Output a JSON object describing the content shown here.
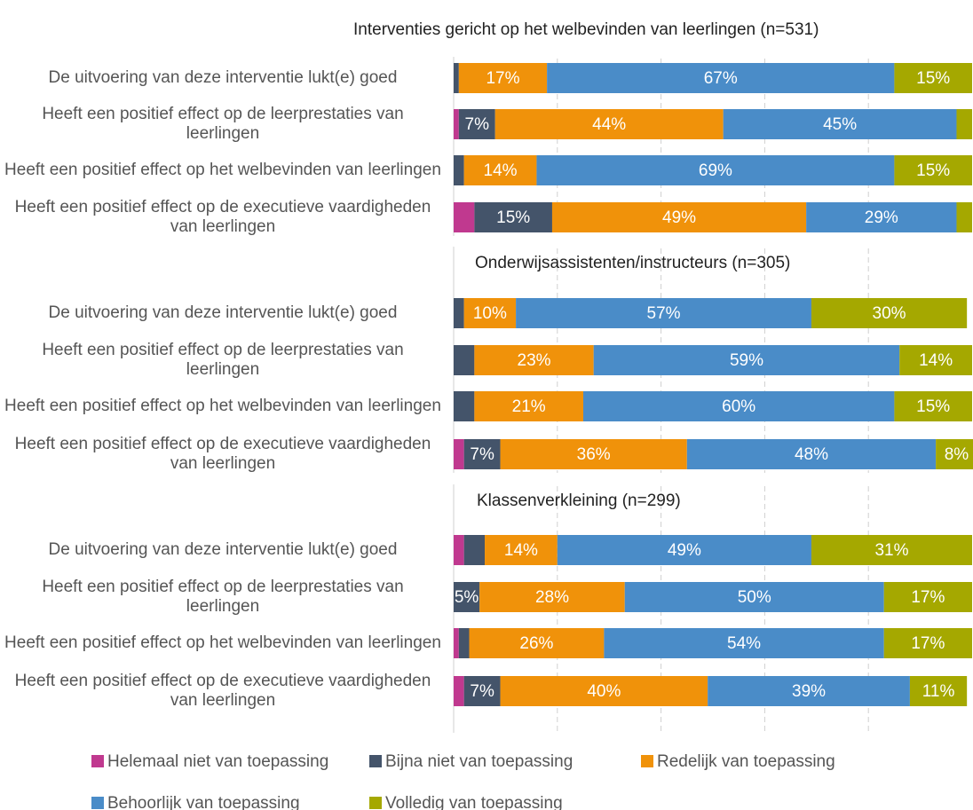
{
  "chart_data": [
    {
      "type": "stacked-bar-horizontal",
      "title": "Interventies gericht op het welbevinden van leerlingen (n=531)",
      "categories": [
        "De uitvoering van deze interventie lukt(e) goed",
        "Heeft een positief effect op de leerprestaties van leerlingen",
        "Heeft een positief effect op het welbevinden van leerlingen",
        "Heeft een positief effect op de executieve vaardigheden van leerlingen"
      ],
      "xlim": [
        0,
        100
      ],
      "xticks": [
        20,
        40,
        60,
        80
      ],
      "grid": true,
      "series": [
        {
          "name": "Helemaal niet van toepassing",
          "color": "#c0398f",
          "values": [
            0,
            1,
            0,
            4
          ],
          "value_labels": [
            null,
            null,
            null,
            null
          ]
        },
        {
          "name": "Bijna niet van toepassing",
          "color": "#44546a",
          "values": [
            1,
            7,
            2,
            15
          ],
          "value_labels": [
            null,
            "7%",
            null,
            "15%"
          ]
        },
        {
          "name": "Redelijk van toepassing",
          "color": "#f0920a",
          "values": [
            17,
            44,
            14,
            49
          ],
          "value_labels": [
            "17%",
            "44%",
            "14%",
            "49%"
          ]
        },
        {
          "name": "Behoorlijk van toepassing",
          "color": "#4a8cc8",
          "values": [
            67,
            45,
            69,
            29
          ],
          "value_labels": [
            "67%",
            "45%",
            "69%",
            "29%"
          ]
        },
        {
          "name": "Volledig van toepassing",
          "color": "#a5a800",
          "values": [
            15,
            3,
            15,
            3
          ],
          "value_labels": [
            "15%",
            null,
            "15%",
            null
          ]
        }
      ]
    },
    {
      "type": "stacked-bar-horizontal",
      "title": "Onderwijsassistenten/instructeurs (n=305)",
      "categories": [
        "De uitvoering van deze interventie lukt(e) goed",
        "Heeft een positief effect op de leerprestaties van leerlingen",
        "Heeft een positief effect op het welbevinden van leerlingen",
        "Heeft een positief effect op de executieve vaardigheden van leerlingen"
      ],
      "xlim": [
        0,
        100
      ],
      "xticks": [
        20,
        40,
        60,
        80
      ],
      "grid": true,
      "series": [
        {
          "name": "Helemaal niet van toepassing",
          "color": "#c0398f",
          "values": [
            0,
            0,
            0,
            2
          ],
          "value_labels": [
            null,
            null,
            null,
            null
          ]
        },
        {
          "name": "Bijna niet van toepassing",
          "color": "#44546a",
          "values": [
            2,
            4,
            4,
            7
          ],
          "value_labels": [
            null,
            null,
            null,
            "7%"
          ]
        },
        {
          "name": "Redelijk van toepassing",
          "color": "#f0920a",
          "values": [
            10,
            23,
            21,
            36
          ],
          "value_labels": [
            "10%",
            "23%",
            "21%",
            "36%"
          ]
        },
        {
          "name": "Behoorlijk van toepassing",
          "color": "#4a8cc8",
          "values": [
            57,
            59,
            60,
            48
          ],
          "value_labels": [
            "57%",
            "59%",
            "60%",
            "48%"
          ]
        },
        {
          "name": "Volledig van toepassing",
          "color": "#a5a800",
          "values": [
            30,
            14,
            15,
            8
          ],
          "value_labels": [
            "30%",
            "14%",
            "15%",
            "8%"
          ]
        }
      ]
    },
    {
      "type": "stacked-bar-horizontal",
      "title": "Klassenverkleining (n=299)",
      "categories": [
        "De uitvoering van deze interventie lukt(e) goed",
        "Heeft een positief effect op de leerprestaties van leerlingen",
        "Heeft een positief effect op het welbevinden van leerlingen",
        "Heeft een positief effect op de executieve vaardigheden van leerlingen"
      ],
      "xlim": [
        0,
        100
      ],
      "xticks": [
        20,
        40,
        60,
        80
      ],
      "grid": true,
      "series": [
        {
          "name": "Helemaal niet van toepassing",
          "color": "#c0398f",
          "values": [
            2,
            0,
            1,
            2
          ],
          "value_labels": [
            null,
            null,
            null,
            null
          ]
        },
        {
          "name": "Bijna niet van toepassing",
          "color": "#44546a",
          "values": [
            4,
            5,
            2,
            7
          ],
          "value_labels": [
            null,
            "5%",
            null,
            "7%"
          ]
        },
        {
          "name": "Redelijk van toepassing",
          "color": "#f0920a",
          "values": [
            14,
            28,
            26,
            40
          ],
          "value_labels": [
            "14%",
            "28%",
            "26%",
            "40%"
          ]
        },
        {
          "name": "Behoorlijk van toepassing",
          "color": "#4a8cc8",
          "values": [
            49,
            50,
            54,
            39
          ],
          "value_labels": [
            "49%",
            "50%",
            "54%",
            "39%"
          ]
        },
        {
          "name": "Volledig van toepassing",
          "color": "#a5a800",
          "values": [
            31,
            17,
            17,
            11
          ],
          "value_labels": [
            "31%",
            "17%",
            "17%",
            "11%"
          ]
        }
      ]
    }
  ]
}
